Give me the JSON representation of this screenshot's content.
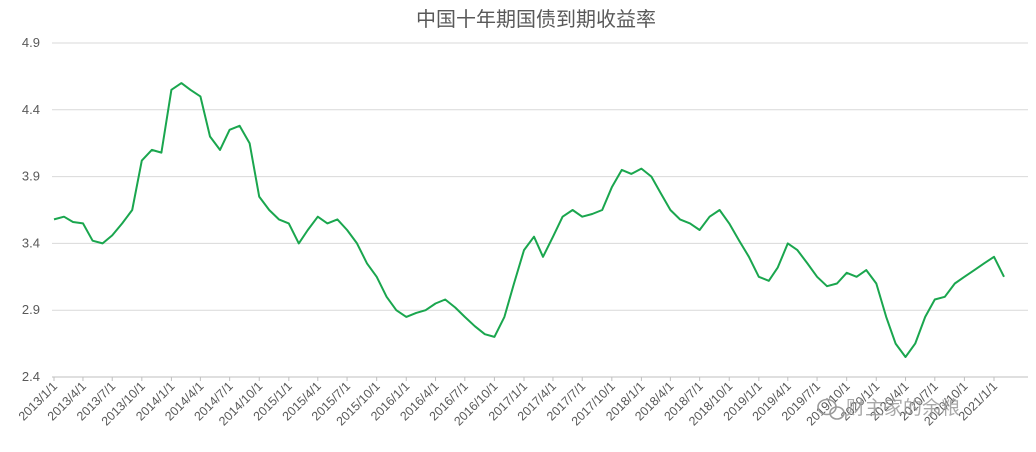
{
  "chart_data": {
    "type": "line",
    "title": "中国十年期国债到期收益率",
    "xlabel": "",
    "ylabel": "",
    "ylim": [
      2.4,
      4.9
    ],
    "yticks": [
      "4.9",
      "4.4",
      "3.9",
      "3.4",
      "2.9",
      "2.4"
    ],
    "xticks": [
      "2013/1/1",
      "2013/4/1",
      "2013/7/1",
      "2013/10/1",
      "2014/1/1",
      "2014/4/1",
      "2014/7/1",
      "2014/10/1",
      "2015/1/1",
      "2015/4/1",
      "2015/7/1",
      "2015/10/1",
      "2016/1/1",
      "2016/4/1",
      "2016/7/1",
      "2016/10/1",
      "2017/1/1",
      "2017/4/1",
      "2017/7/1",
      "2017/10/1",
      "2018/1/1",
      "2018/4/1",
      "2018/7/1",
      "2018/10/1",
      "2019/1/1",
      "2019/4/1",
      "2019/7/1",
      "2019/10/1",
      "2020/1/1",
      "2020/4/1",
      "2020/7/1",
      "2020/10/1",
      "2021/1/1"
    ],
    "grid": true,
    "legend": "none",
    "line_color": "#1aa64e",
    "series": [
      {
        "x": [
          "2013/1/1",
          "2013/2/1",
          "2013/3/1",
          "2013/4/1",
          "2013/5/1",
          "2013/6/1",
          "2013/7/1",
          "2013/8/1",
          "2013/9/1",
          "2013/10/1",
          "2013/11/1",
          "2013/12/1",
          "2014/1/1",
          "2014/2/1",
          "2014/3/1",
          "2014/4/1",
          "2014/5/1",
          "2014/6/1",
          "2014/7/1",
          "2014/8/1",
          "2014/9/1",
          "2014/10/1",
          "2014/11/1",
          "2014/12/1",
          "2015/1/1",
          "2015/2/1",
          "2015/3/1",
          "2015/4/1",
          "2015/5/1",
          "2015/6/1",
          "2015/7/1",
          "2015/8/1",
          "2015/9/1",
          "2015/10/1",
          "2015/11/1",
          "2015/12/1",
          "2016/1/1",
          "2016/2/1",
          "2016/3/1",
          "2016/4/1",
          "2016/5/1",
          "2016/6/1",
          "2016/7/1",
          "2016/8/1",
          "2016/9/1",
          "2016/10/1",
          "2016/11/1",
          "2016/12/1",
          "2017/1/1",
          "2017/2/1",
          "2017/3/1",
          "2017/4/1",
          "2017/5/1",
          "2017/6/1",
          "2017/7/1",
          "2017/8/1",
          "2017/9/1",
          "2017/10/1",
          "2017/11/1",
          "2017/12/1",
          "2018/1/1",
          "2018/2/1",
          "2018/3/1",
          "2018/4/1",
          "2018/5/1",
          "2018/6/1",
          "2018/7/1",
          "2018/8/1",
          "2018/9/1",
          "2018/10/1",
          "2018/11/1",
          "2018/12/1",
          "2019/1/1",
          "2019/2/1",
          "2019/3/1",
          "2019/4/1",
          "2019/5/1",
          "2019/6/1",
          "2019/7/1",
          "2019/8/1",
          "2019/9/1",
          "2019/10/1",
          "2019/11/1",
          "2019/12/1",
          "2020/1/1",
          "2020/2/1",
          "2020/3/1",
          "2020/4/1",
          "2020/5/1",
          "2020/6/1",
          "2020/7/1",
          "2020/8/1",
          "2020/9/1",
          "2020/10/1",
          "2020/11/1",
          "2020/12/1",
          "2021/1/1",
          "2021/2/1"
        ],
        "y": [
          3.58,
          3.6,
          3.56,
          3.55,
          3.42,
          3.4,
          3.46,
          3.55,
          3.65,
          4.02,
          4.1,
          4.08,
          4.55,
          4.6,
          4.55,
          4.5,
          4.2,
          4.1,
          4.25,
          4.28,
          4.15,
          3.75,
          3.65,
          3.58,
          3.55,
          3.4,
          3.5,
          3.6,
          3.55,
          3.58,
          3.5,
          3.4,
          3.25,
          3.15,
          3.0,
          2.9,
          2.85,
          2.88,
          2.9,
          2.95,
          2.98,
          2.92,
          2.85,
          2.78,
          2.72,
          2.7,
          2.85,
          3.1,
          3.35,
          3.45,
          3.3,
          3.45,
          3.6,
          3.65,
          3.6,
          3.62,
          3.65,
          3.82,
          3.95,
          3.92,
          3.96,
          3.9,
          3.78,
          3.65,
          3.58,
          3.55,
          3.5,
          3.6,
          3.65,
          3.55,
          3.42,
          3.3,
          3.15,
          3.12,
          3.22,
          3.4,
          3.35,
          3.25,
          3.15,
          3.08,
          3.1,
          3.18,
          3.15,
          3.2,
          3.1,
          2.85,
          2.65,
          2.55,
          2.65,
          2.85,
          2.98,
          3.0,
          3.1,
          3.15,
          3.2,
          3.25,
          3.3,
          3.15
        ]
      }
    ]
  },
  "watermark": {
    "icon": "wechat-icon",
    "text": "财主家的余粮"
  }
}
